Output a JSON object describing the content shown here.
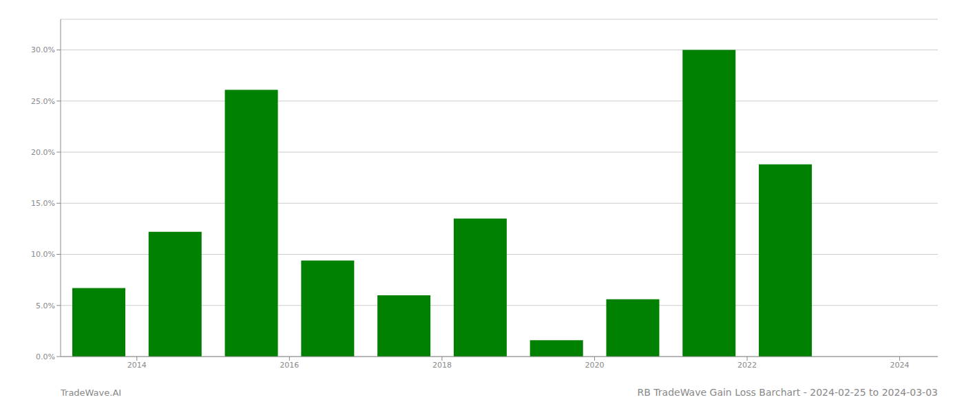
{
  "chart_data": {
    "type": "bar",
    "title": "RB TradeWave Gain Loss Barchart - 2024-02-25 to 2024-03-03",
    "annotations": [
      "TradeWave.AI"
    ],
    "x": [
      2013.5,
      2014.5,
      2015.5,
      2016.5,
      2017.5,
      2018.5,
      2019.5,
      2020.5,
      2021.5,
      2022.5
    ],
    "values": [
      0.067,
      0.122,
      0.261,
      0.094,
      0.06,
      0.135,
      0.016,
      0.056,
      0.3,
      0.188
    ],
    "color": "#008000",
    "xlim": [
      2013.0,
      2024.5
    ],
    "xticks": [
      2014,
      2016,
      2018,
      2020,
      2022,
      2024
    ],
    "ylim": [
      0,
      0.33
    ],
    "yticks": [
      {
        "value": 0.0,
        "label": "0.0%"
      },
      {
        "value": 0.05,
        "label": "5.0%"
      },
      {
        "value": 0.1,
        "label": "10.0%"
      },
      {
        "value": 0.15,
        "label": "15.0%"
      },
      {
        "value": 0.2,
        "label": "20.0%"
      },
      {
        "value": 0.25,
        "label": "25.0%"
      },
      {
        "value": 0.3,
        "label": "30.0%"
      }
    ],
    "grid": true
  }
}
